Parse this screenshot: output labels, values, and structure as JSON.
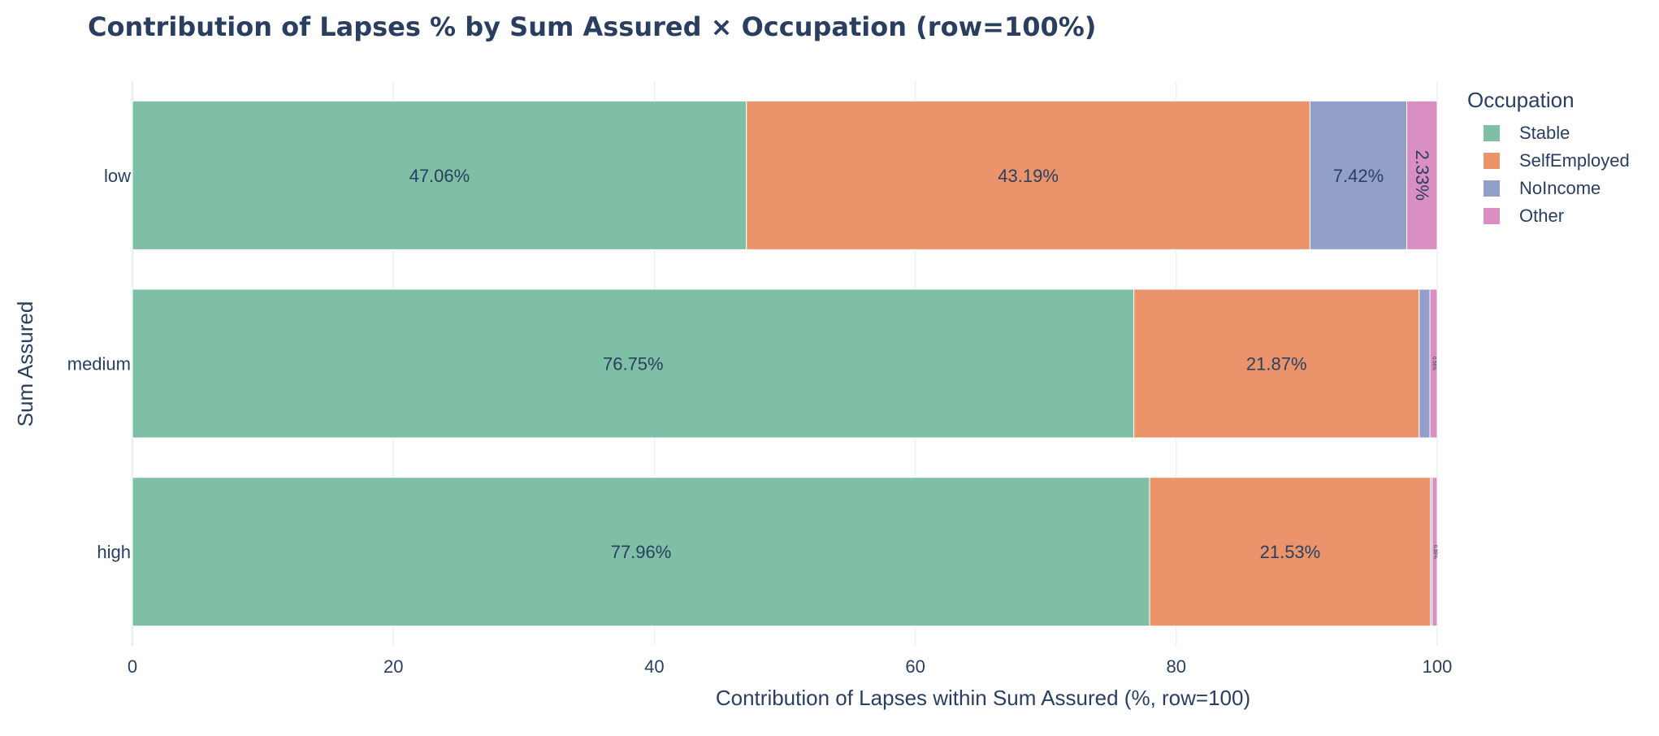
{
  "chart_data": {
    "type": "bar",
    "orientation": "horizontal",
    "barmode": "stack",
    "title": "Contribution of Lapses % by Sum Assured × Occupation (row=100%)",
    "xlabel": "Contribution of Lapses within Sum Assured (%, row=100)",
    "ylabel": "Sum Assured",
    "xlim": [
      0,
      100
    ],
    "xticks": [
      0,
      20,
      40,
      60,
      80,
      100
    ],
    "categories": [
      "low",
      "medium",
      "high"
    ],
    "legend_title": "Occupation",
    "legend_position": "right",
    "grid": true,
    "series": [
      {
        "name": "Stable",
        "color": "#7fbfa6",
        "values": [
          47.06,
          76.75,
          77.96
        ],
        "labels": [
          "47.06%",
          "76.75%",
          "77.96%"
        ]
      },
      {
        "name": "SelfEmployed",
        "color": "#eb946b",
        "values": [
          43.19,
          21.87,
          21.53
        ],
        "labels": [
          "43.19%",
          "21.87%",
          "21.53%"
        ]
      },
      {
        "name": "NoIncome",
        "color": "#929fc8",
        "values": [
          7.42,
          0.82,
          0.12
        ],
        "labels": [
          "7.42%",
          "",
          ""
        ]
      },
      {
        "name": "Other",
        "color": "#d98fc2",
        "values": [
          2.33,
          0.56,
          0.39
        ],
        "labels": [
          "2.33%",
          "0.56%",
          "0.39%"
        ]
      }
    ]
  }
}
